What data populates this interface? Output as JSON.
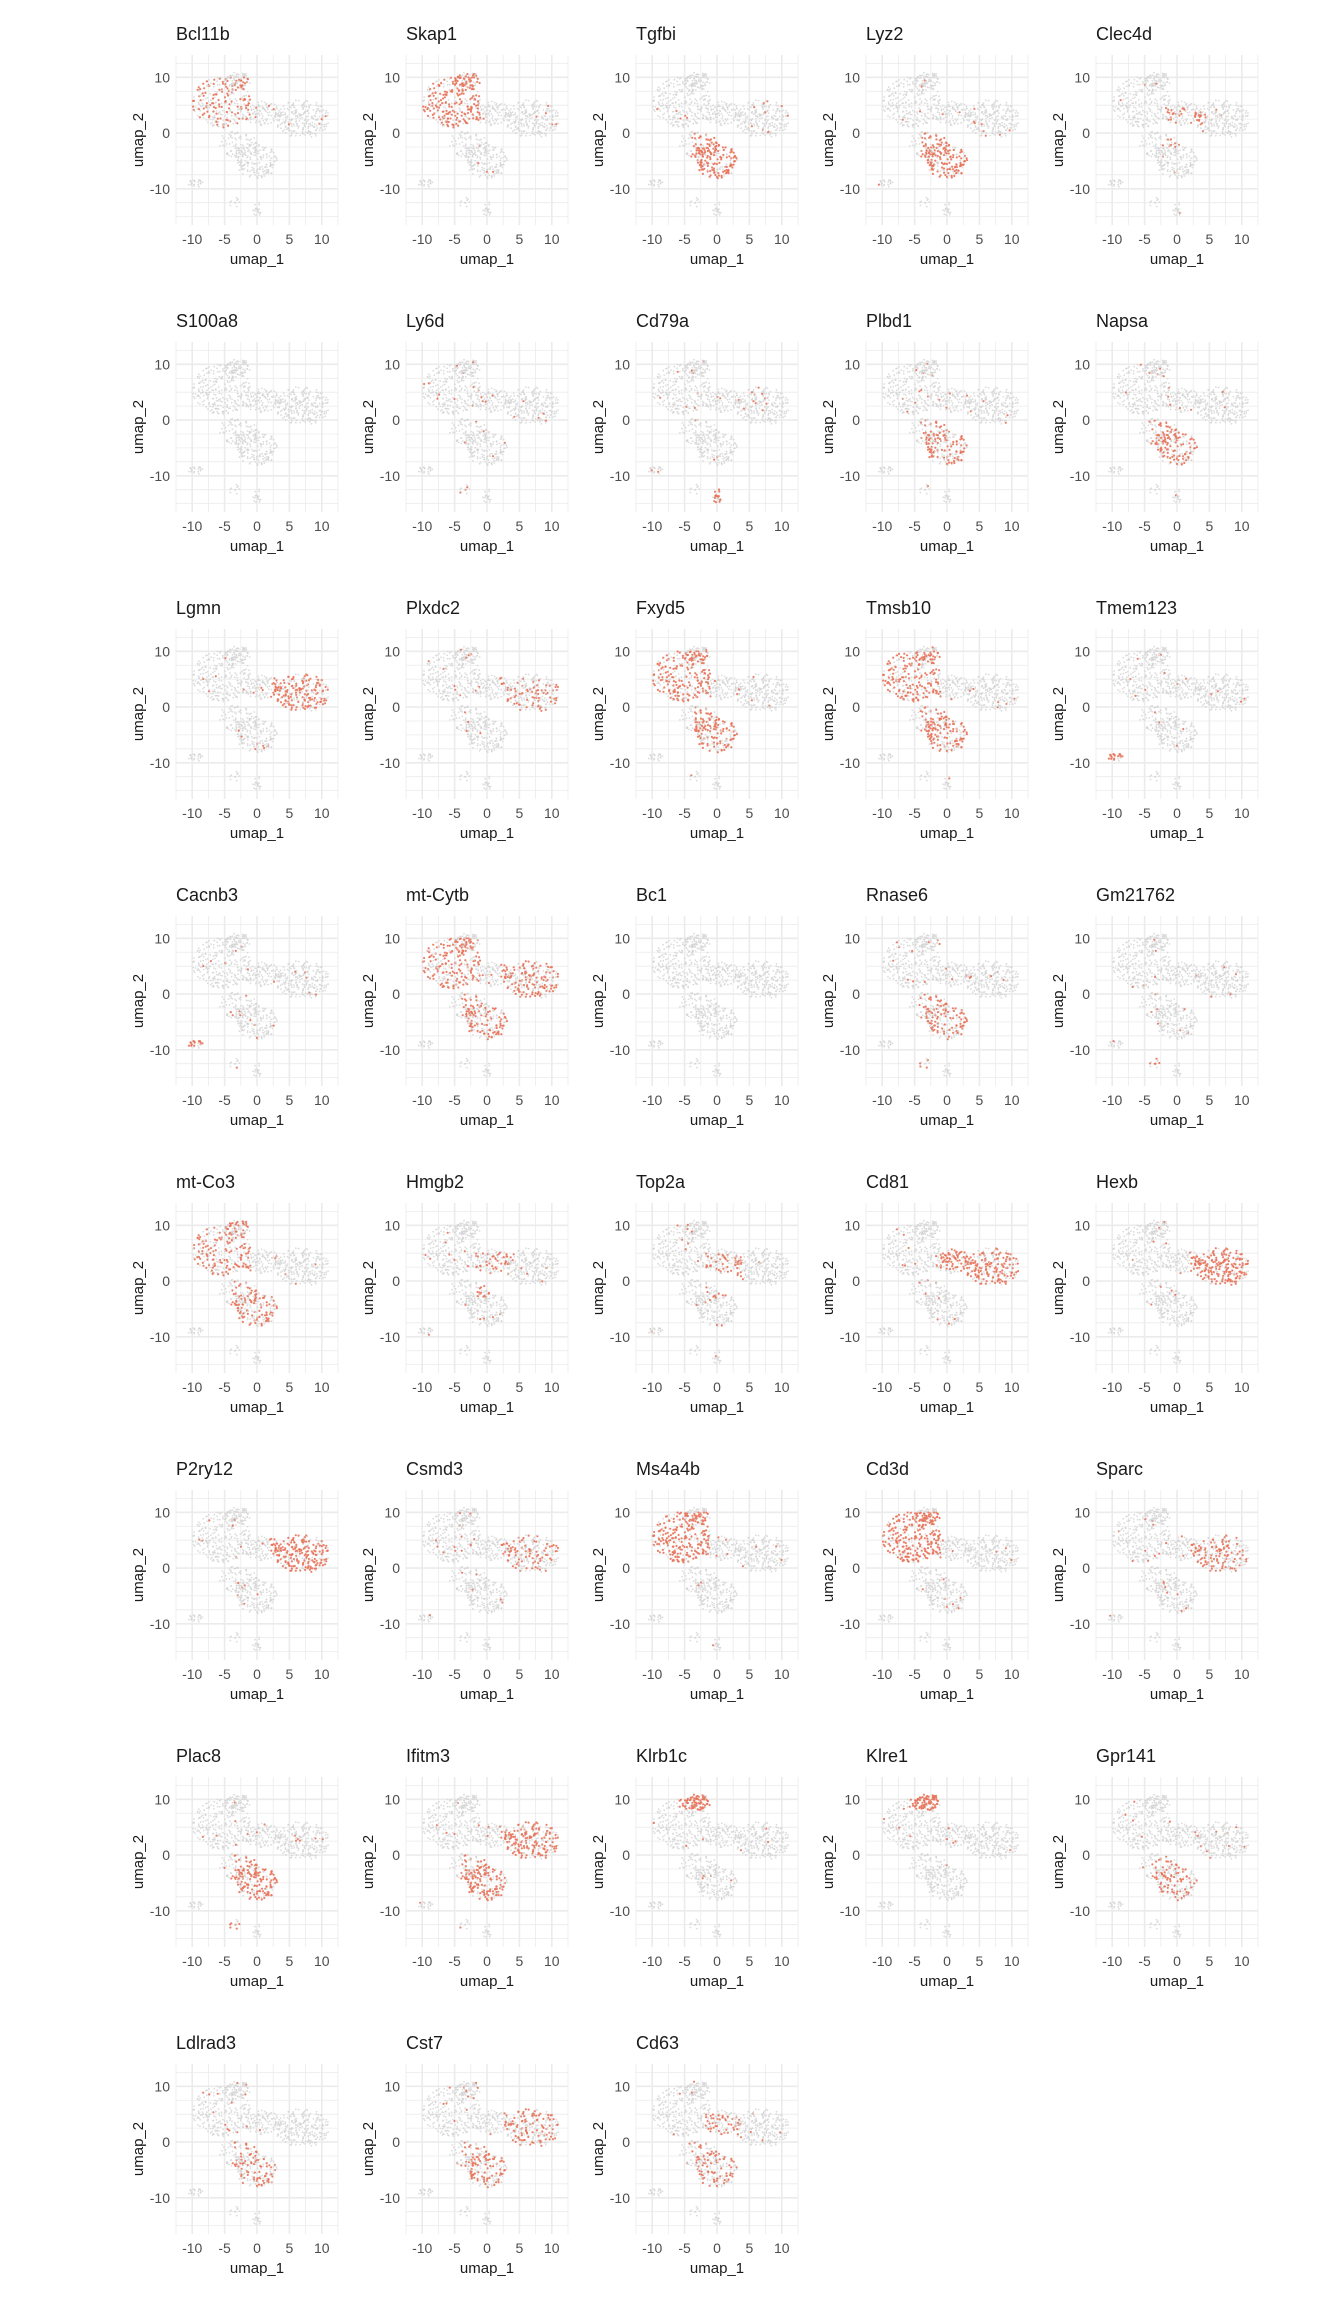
{
  "colors": {
    "low": "#d3d3d3",
    "high": "#e8735a",
    "grid": "#ebebeb",
    "tick": "#4d4d4d"
  },
  "chart_data": {
    "type": "scatter",
    "layout": "5 columns x 8 rows feature plot grid",
    "xlabel": "umap_1",
    "ylabel": "umap_2",
    "xticks": [
      -10,
      -5,
      0,
      5,
      10
    ],
    "yticks": [
      10,
      0,
      -10
    ],
    "xlim": [
      -12.5,
      12.5
    ],
    "ylim": [
      -16.5,
      14
    ],
    "grid": true,
    "regions": {
      "T": [
        -10,
        -1,
        1,
        10
      ],
      "NK": [
        -6,
        0,
        8,
        11
      ],
      "Mono": [
        -4,
        4,
        -9,
        0
      ],
      "B": [
        -1,
        1,
        -15,
        -12
      ],
      "Mac": [
        2,
        11,
        -2,
        7
      ],
      "DC": [
        -11,
        -8,
        -10,
        -8
      ],
      "Mid": [
        -2,
        4,
        -3,
        5
      ],
      "Pdc": [
        -5,
        -2,
        -14,
        -11
      ],
      "UpperMid": [
        -1,
        5,
        2,
        7
      ]
    },
    "features": [
      {
        "name": "Bcl11b",
        "hot": [
          "T"
        ],
        "level": 0.35
      },
      {
        "name": "Skap1",
        "hot": [
          "T",
          "NK"
        ],
        "level": 0.6
      },
      {
        "name": "Tgfbi",
        "hot": [
          "Mono"
        ],
        "level": 0.7
      },
      {
        "name": "Lyz2",
        "hot": [
          "Mono"
        ],
        "level": 0.6
      },
      {
        "name": "Clec4d",
        "hot": [
          "Mid"
        ],
        "level": 0.25
      },
      {
        "name": "S100a8",
        "hot": [],
        "level": 0.0
      },
      {
        "name": "Ly6d",
        "hot": [
          "Pdc"
        ],
        "level": 0.5
      },
      {
        "name": "Cd79a",
        "hot": [
          "B"
        ],
        "level": 0.8
      },
      {
        "name": "Plbd1",
        "hot": [
          "Mono"
        ],
        "level": 0.5
      },
      {
        "name": "Napsa",
        "hot": [
          "Mono"
        ],
        "level": 0.5
      },
      {
        "name": "Lgmn",
        "hot": [
          "Mac"
        ],
        "level": 0.6
      },
      {
        "name": "Plxdc2",
        "hot": [
          "Mac"
        ],
        "level": 0.3
      },
      {
        "name": "Fxyd5",
        "hot": [
          "T",
          "Mono"
        ],
        "level": 0.55
      },
      {
        "name": "Tmsb10",
        "hot": [
          "T",
          "Mono"
        ],
        "level": 0.55
      },
      {
        "name": "Tmem123",
        "hot": [
          "DC"
        ],
        "level": 0.7
      },
      {
        "name": "Cacnb3",
        "hot": [
          "DC"
        ],
        "level": 0.8
      },
      {
        "name": "mt-Cytb",
        "hot": [
          "T",
          "Mac",
          "Mono"
        ],
        "level": 0.5
      },
      {
        "name": "Bc1",
        "hot": [],
        "level": 0.0
      },
      {
        "name": "Rnase6",
        "hot": [
          "Pdc",
          "Mono"
        ],
        "level": 0.4
      },
      {
        "name": "Gm21762",
        "hot": [
          "Pdc"
        ],
        "level": 0.5
      },
      {
        "name": "mt-Co3",
        "hot": [
          "T",
          "NK",
          "Mono"
        ],
        "level": 0.45
      },
      {
        "name": "Hmgb2",
        "hot": [
          "Mid"
        ],
        "level": 0.35
      },
      {
        "name": "Top2a",
        "hot": [
          "Mid"
        ],
        "level": 0.35
      },
      {
        "name": "Cd81",
        "hot": [
          "Mac",
          "UpperMid"
        ],
        "level": 0.65
      },
      {
        "name": "Hexb",
        "hot": [
          "Mac"
        ],
        "level": 0.7
      },
      {
        "name": "P2ry12",
        "hot": [
          "Mac"
        ],
        "level": 0.7
      },
      {
        "name": "Csmd3",
        "hot": [
          "Mac"
        ],
        "level": 0.35
      },
      {
        "name": "Ms4a4b",
        "hot": [
          "T"
        ],
        "level": 0.7
      },
      {
        "name": "Cd3d",
        "hot": [
          "T"
        ],
        "level": 0.8
      },
      {
        "name": "Sparc",
        "hot": [
          "Mac"
        ],
        "level": 0.4
      },
      {
        "name": "Plac8",
        "hot": [
          "Mono",
          "Pdc"
        ],
        "level": 0.6
      },
      {
        "name": "Ifitm3",
        "hot": [
          "Mono",
          "Mac"
        ],
        "level": 0.6
      },
      {
        "name": "Klrb1c",
        "hot": [
          "NK"
        ],
        "level": 0.7
      },
      {
        "name": "Klre1",
        "hot": [
          "NK"
        ],
        "level": 0.85
      },
      {
        "name": "Gpr141",
        "hot": [
          "Mono"
        ],
        "level": 0.35
      },
      {
        "name": "Ldlrad3",
        "hot": [
          "Mono"
        ],
        "level": 0.35
      },
      {
        "name": "Cst7",
        "hot": [
          "Mac",
          "Mono"
        ],
        "level": 0.4
      },
      {
        "name": "Cd63",
        "hot": [
          "Mid",
          "Mono"
        ],
        "level": 0.35
      }
    ]
  }
}
